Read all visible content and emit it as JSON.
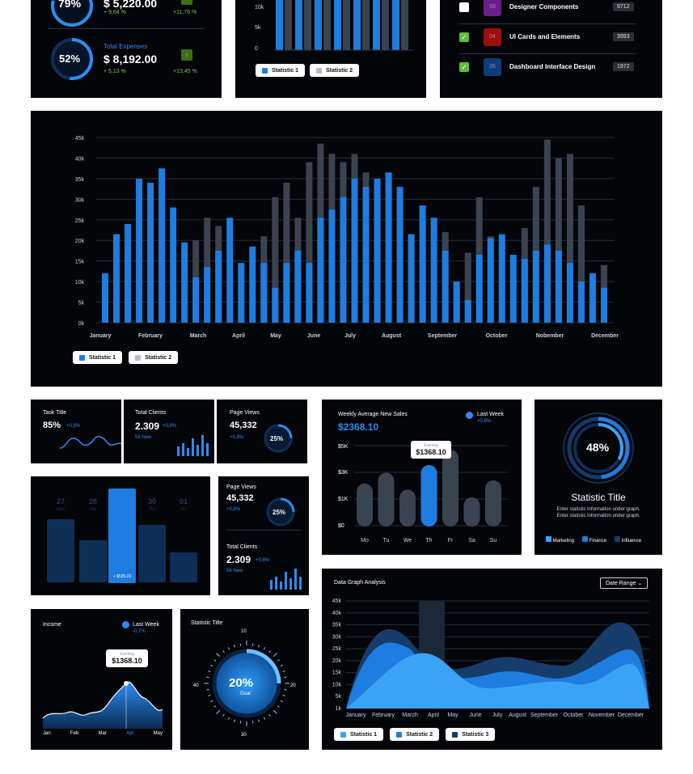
{
  "colors": {
    "blue": "#1e7de0",
    "lightblue": "#3aa3f5",
    "gray": "#3a4350",
    "green": "#5fbe3a",
    "bg": "#030509"
  },
  "summary": {
    "top": {
      "pct": "79%",
      "amount": "$ 5,220.00",
      "change": "+ 9,64 %",
      "delta": "+11,76 %"
    },
    "bottom": {
      "title": "Total Expenses",
      "pct": "52%",
      "amount": "$ 8,192.00",
      "change": "+ 5,13 %",
      "delta": "+13,45 %"
    }
  },
  "mini_chart": {
    "ticks": [
      "10k",
      "5k",
      "0"
    ],
    "legend": [
      "Statistic 1",
      "Statistic 2"
    ]
  },
  "task_list": {
    "items": [
      {
        "num": "03",
        "title": "Designer Components",
        "count": "9712",
        "checked": false,
        "color": "#6a1f8a"
      },
      {
        "num": "04",
        "title": "UI Cards and Elements",
        "count": "3993",
        "checked": true,
        "color": "#9a1010"
      },
      {
        "num": "05",
        "title": "Dashboard Interface Design",
        "count": "1972",
        "checked": true,
        "color": "#0e3d7a"
      }
    ]
  },
  "chart_data": {
    "type": "bar",
    "title": "",
    "y_ticks": [
      "45k",
      "40k",
      "35k",
      "30k",
      "25k",
      "20k",
      "15k",
      "10k",
      "5k",
      "0k"
    ],
    "ylim": [
      0,
      45
    ],
    "months": [
      "January",
      "February",
      "March",
      "April",
      "May",
      "June",
      "July",
      "August",
      "September",
      "October",
      "Nobember",
      "December"
    ],
    "series": [
      {
        "name": "Statistic 1",
        "values": [
          12,
          21.5,
          24,
          35,
          34,
          37.5,
          28,
          19.5,
          11,
          13.5,
          17.5,
          25.5,
          14.5,
          18.5,
          14.5,
          8.5,
          14.5,
          17.5,
          14.5,
          25.5,
          27.5,
          30.5,
          35,
          33,
          35,
          36.5,
          33,
          21.5,
          28.5,
          25.5,
          17.5,
          10,
          5.5,
          16.5,
          20.5,
          21.5,
          16.5,
          15.5,
          17.5,
          19,
          17.5,
          14.5,
          10,
          12,
          8.5
        ]
      },
      {
        "name": "Statistic 2",
        "values": [
          0,
          0,
          0,
          0,
          0,
          0,
          0,
          0,
          20,
          25.5,
          23.5,
          0,
          0,
          0,
          21,
          30.5,
          34,
          25.5,
          39,
          43.5,
          41,
          39,
          41,
          36.5,
          33,
          0,
          0,
          0,
          0,
          0,
          22,
          0,
          17,
          30.5,
          21,
          0,
          0,
          23,
          33,
          44.5,
          40,
          41,
          28.5,
          0,
          14
        ]
      }
    ],
    "legend": [
      "Statistic 1",
      "Statistic 2"
    ],
    "grid": true,
    "legend_position": "bottom-left"
  },
  "task_card": {
    "title": "Task Title",
    "value": "85%",
    "change": "+0,8%"
  },
  "clients_card": {
    "title": "Total Clients",
    "value": "2.309",
    "change": "+0,8%",
    "sub": "56 New"
  },
  "pageviews_card": {
    "title": "Page Views",
    "value": "45,332",
    "change": "+0,8%",
    "ring": "25%"
  },
  "weekly": {
    "title": "Weekly Average New Sales",
    "amount": "$2368.10",
    "legend": "Last Week",
    "legend_change": "+0,8%",
    "tooltip_label": "Earning",
    "tooltip_value": "$1368.10",
    "y_ticks": [
      "$5K",
      "$3K",
      "$1K",
      "$0"
    ],
    "days": [
      "Mo",
      "Tu",
      "We",
      "Th",
      "Fr",
      "Sa",
      "Su"
    ],
    "values": [
      2.8,
      3.5,
      2.4,
      4.0,
      5.0,
      1.9,
      3.0
    ]
  },
  "stat_ring": {
    "pct": "48%",
    "title": "Statistic Title",
    "desc": "Enter statistic information under graph. Enter statistic information under graph.",
    "legend": [
      "Marketing",
      "Finance",
      "Influence"
    ]
  },
  "calendar": {
    "days": [
      {
        "num": "27",
        "name": "Mon"
      },
      {
        "num": "28",
        "name": "Tue"
      },
      {
        "num": "29",
        "name": "May"
      },
      {
        "num": "30",
        "name": "Thu"
      },
      {
        "num": "01",
        "name": "Fri"
      }
    ],
    "active_value": "+ $535.23",
    "values": [
      0.72,
      0.48,
      1.0,
      0.66,
      0.34
    ]
  },
  "pageviews2": {
    "title": "Page Views",
    "value": "45,332",
    "change": "+0,8%",
    "ring": "25%"
  },
  "clients2": {
    "title": "Total Clients",
    "value": "2.309",
    "change": "+0,8%",
    "sub": "56 New"
  },
  "income": {
    "title": "Income",
    "legend": "Last Week",
    "legend_change": "-0,7%",
    "tooltip_label": "Earning",
    "tooltip_value": "$1368.10",
    "months": [
      "Jan",
      "Feb",
      "Mar",
      "Apr",
      "May"
    ]
  },
  "goal": {
    "title": "Statistic Title",
    "pct": "20%",
    "label": "Goal",
    "ticks": {
      "top": "10",
      "right": "20",
      "bottom": "30",
      "left": "40"
    }
  },
  "area": {
    "title": "Data Graph Analysis",
    "dropdown": "Date Range",
    "y_ticks": [
      "45k",
      "40k",
      "35k",
      "30k",
      "25k",
      "20k",
      "15k",
      "10k",
      "5k",
      "1k"
    ],
    "months": [
      "January",
      "February",
      "March",
      "April",
      "May",
      "June",
      "July",
      "August",
      "September",
      "October",
      "November",
      "December"
    ],
    "legend": [
      "Statistic 1",
      "Statistic 2",
      "Statistic 3"
    ]
  }
}
